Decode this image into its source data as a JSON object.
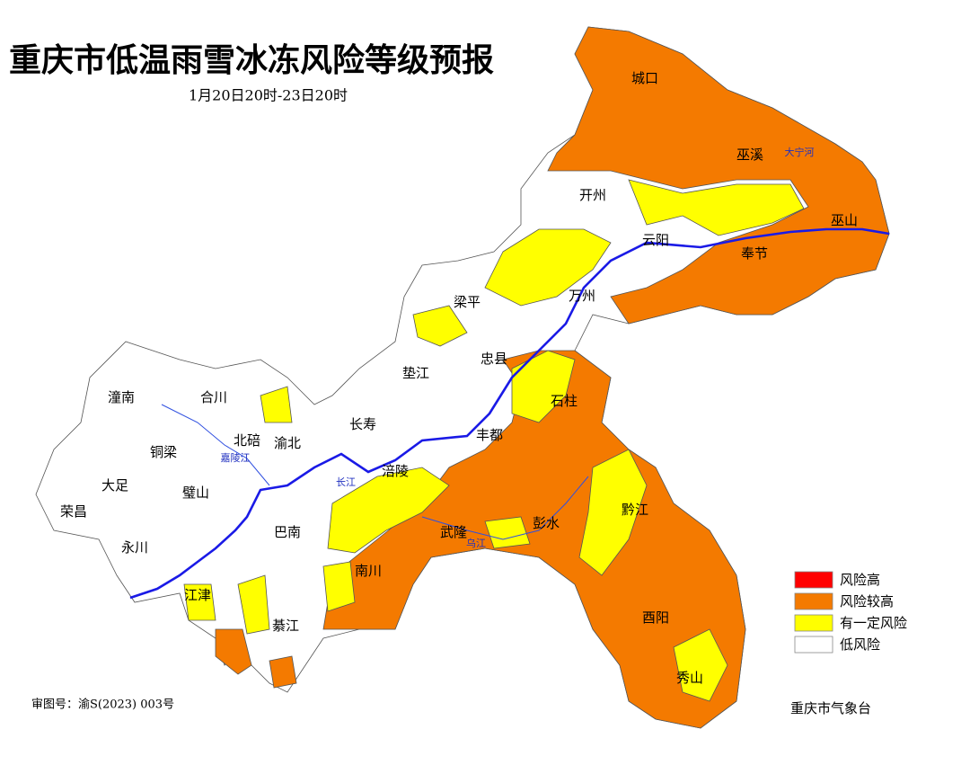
{
  "header": {
    "title": "重庆市低温雨雪冰冻风险等级预报",
    "subtitle": "1月20日20时-23日20时"
  },
  "legend": {
    "items": [
      {
        "label": "风险高",
        "color": "#ff0000"
      },
      {
        "label": "风险较高",
        "color": "#f47a00"
      },
      {
        "label": "有一定风险",
        "color": "#ffff00"
      },
      {
        "label": "低风险",
        "color": "#ffffff"
      }
    ]
  },
  "districts": [
    {
      "label": "城口"
    },
    {
      "label": "巫溪"
    },
    {
      "label": "开州"
    },
    {
      "label": "巫山"
    },
    {
      "label": "云阳"
    },
    {
      "label": "奉节"
    },
    {
      "label": "梁平"
    },
    {
      "label": "万州"
    },
    {
      "label": "忠县"
    },
    {
      "label": "垫江"
    },
    {
      "label": "石柱"
    },
    {
      "label": "潼南"
    },
    {
      "label": "合川"
    },
    {
      "label": "长寿"
    },
    {
      "label": "丰都"
    },
    {
      "label": "铜梁"
    },
    {
      "label": "北碚"
    },
    {
      "label": "渝北"
    },
    {
      "label": "涪陵"
    },
    {
      "label": "大足"
    },
    {
      "label": "璧山"
    },
    {
      "label": "荣昌"
    },
    {
      "label": "永川"
    },
    {
      "label": "巴南"
    },
    {
      "label": "武隆"
    },
    {
      "label": "彭水"
    },
    {
      "label": "黔江"
    },
    {
      "label": "南川"
    },
    {
      "label": "江津"
    },
    {
      "label": "酉阳"
    },
    {
      "label": "綦江"
    },
    {
      "label": "秀山"
    }
  ],
  "rivers": [
    {
      "label": "长江"
    },
    {
      "label": "乌江"
    },
    {
      "label": "嘉陵江"
    },
    {
      "label": "大宁河"
    }
  ],
  "footer": {
    "approval": "审图号：渝S(2023) 003号",
    "agency": "重庆市气象台"
  }
}
